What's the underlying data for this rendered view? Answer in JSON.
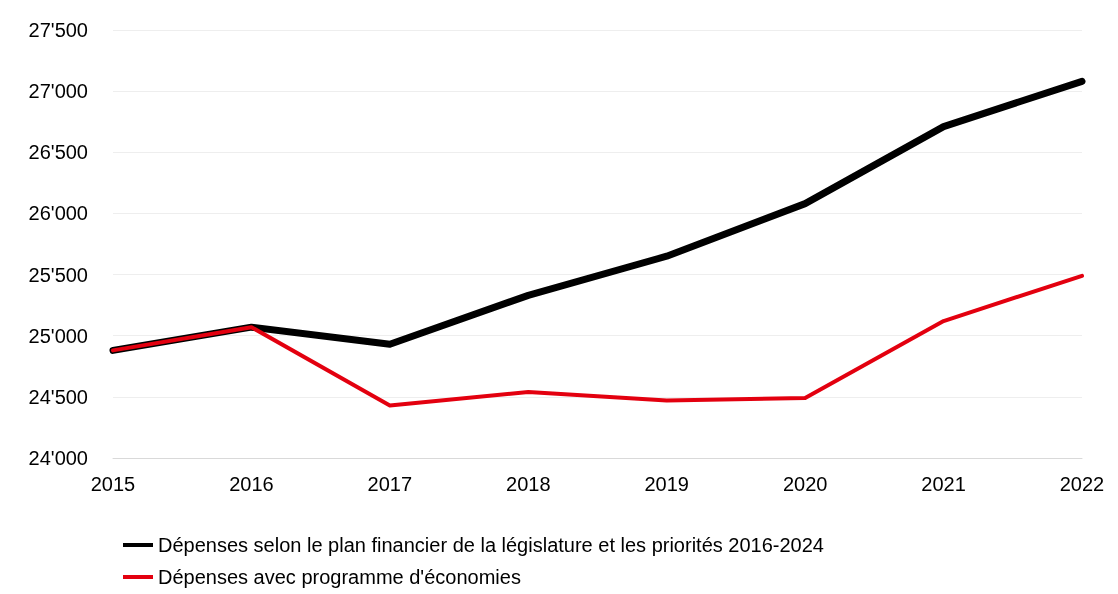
{
  "chart_data": {
    "type": "line",
    "categories": [
      "2015",
      "2016",
      "2017",
      "2018",
      "2019",
      "2020",
      "2021",
      "2022"
    ],
    "series": [
      {
        "name": "Dépenses selon le plan financier de la législature et les priorités 2016-2024",
        "color": "#000000",
        "values": [
          24880,
          25070,
          24930,
          25330,
          25650,
          26080,
          26710,
          27080
        ]
      },
      {
        "name": "Dépenses avec programme d'économies",
        "color": "#e3000f",
        "values": [
          24880,
          25070,
          24430,
          24540,
          24470,
          24490,
          25120,
          25490
        ]
      }
    ],
    "ylim": [
      24000,
      27500
    ],
    "yticks": [
      {
        "value": 24000,
        "label": "24'000"
      },
      {
        "value": 24500,
        "label": "24'500"
      },
      {
        "value": 25000,
        "label": "25'000"
      },
      {
        "value": 25500,
        "label": "25'500"
      },
      {
        "value": 26000,
        "label": "26'000"
      },
      {
        "value": 26500,
        "label": "26'500"
      },
      {
        "value": 27000,
        "label": "27'000"
      },
      {
        "value": 27500,
        "label": "27'500"
      }
    ],
    "grid": "y",
    "legend": "bottom",
    "marker": "none",
    "line_style": "solid"
  }
}
